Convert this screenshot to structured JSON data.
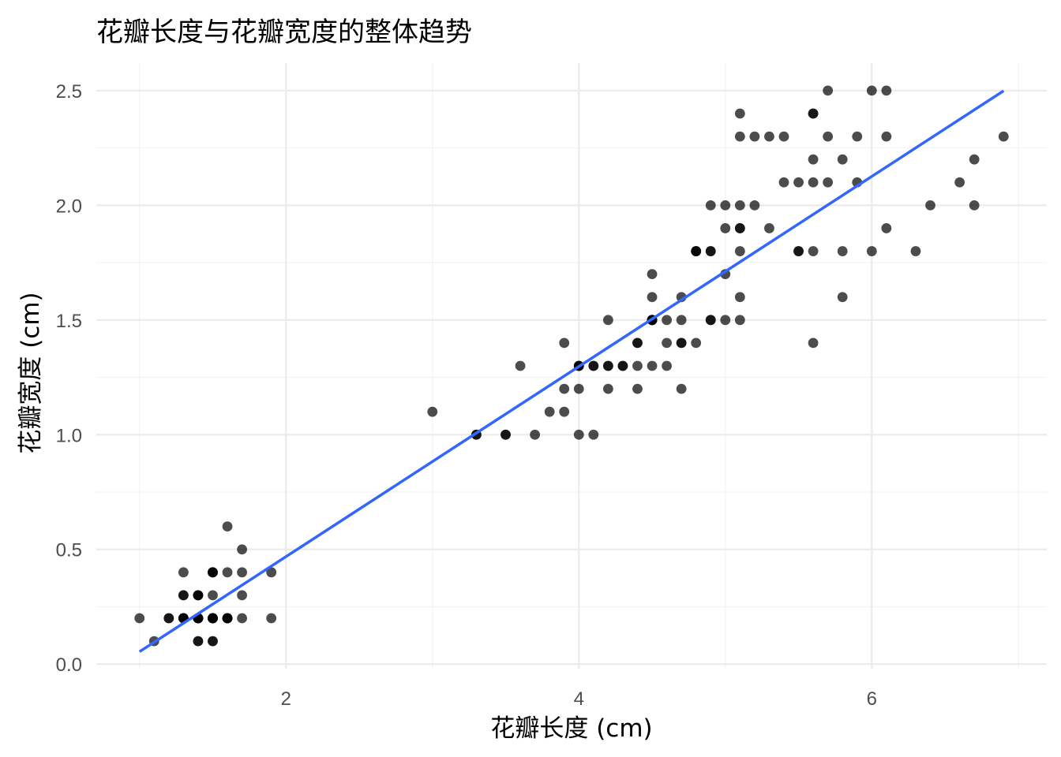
{
  "chart_data": {
    "type": "scatter",
    "title": "花瓣长度与花瓣宽度的整体趋势",
    "xlabel": "花瓣长度 (cm)",
    "ylabel": "花瓣宽度 (cm)",
    "xlim": [
      0.705,
      7.195
    ],
    "ylim": [
      -0.02,
      2.62
    ],
    "x_ticks": [
      2,
      4,
      6
    ],
    "y_ticks": [
      0.0,
      0.5,
      1.0,
      1.5,
      2.0,
      2.5
    ],
    "x_tick_labels": [
      "2",
      "4",
      "6"
    ],
    "y_tick_labels": [
      "0.0",
      "0.5",
      "1.0",
      "1.5",
      "2.0",
      "2.5"
    ],
    "grid": true,
    "point_color": "#000000",
    "point_opacity": 0.7,
    "trend_color": "#3366FF",
    "trend_line": {
      "x": [
        1.0,
        6.9
      ],
      "y": [
        0.054,
        2.499
      ]
    },
    "points": [
      [
        1.4,
        0.2
      ],
      [
        1.4,
        0.2
      ],
      [
        1.3,
        0.2
      ],
      [
        1.5,
        0.2
      ],
      [
        1.4,
        0.2
      ],
      [
        1.7,
        0.4
      ],
      [
        1.4,
        0.3
      ],
      [
        1.5,
        0.2
      ],
      [
        1.4,
        0.2
      ],
      [
        1.5,
        0.1
      ],
      [
        1.5,
        0.2
      ],
      [
        1.6,
        0.2
      ],
      [
        1.4,
        0.1
      ],
      [
        1.1,
        0.1
      ],
      [
        1.2,
        0.2
      ],
      [
        1.5,
        0.4
      ],
      [
        1.3,
        0.4
      ],
      [
        1.4,
        0.3
      ],
      [
        1.7,
        0.3
      ],
      [
        1.5,
        0.3
      ],
      [
        1.7,
        0.2
      ],
      [
        1.5,
        0.4
      ],
      [
        1.0,
        0.2
      ],
      [
        1.7,
        0.5
      ],
      [
        1.9,
        0.2
      ],
      [
        1.6,
        0.2
      ],
      [
        1.6,
        0.4
      ],
      [
        1.5,
        0.2
      ],
      [
        1.4,
        0.2
      ],
      [
        1.6,
        0.2
      ],
      [
        1.6,
        0.2
      ],
      [
        1.5,
        0.4
      ],
      [
        1.5,
        0.1
      ],
      [
        1.4,
        0.2
      ],
      [
        1.5,
        0.2
      ],
      [
        1.2,
        0.2
      ],
      [
        1.3,
        0.2
      ],
      [
        1.4,
        0.1
      ],
      [
        1.3,
        0.2
      ],
      [
        1.5,
        0.2
      ],
      [
        1.3,
        0.3
      ],
      [
        1.3,
        0.3
      ],
      [
        1.3,
        0.2
      ],
      [
        1.6,
        0.6
      ],
      [
        1.9,
        0.4
      ],
      [
        1.4,
        0.3
      ],
      [
        1.6,
        0.2
      ],
      [
        1.4,
        0.2
      ],
      [
        1.5,
        0.2
      ],
      [
        1.4,
        0.2
      ],
      [
        4.7,
        1.4
      ],
      [
        4.5,
        1.5
      ],
      [
        4.9,
        1.5
      ],
      [
        4.0,
        1.3
      ],
      [
        4.6,
        1.5
      ],
      [
        4.5,
        1.3
      ],
      [
        4.7,
        1.6
      ],
      [
        3.3,
        1.0
      ],
      [
        4.6,
        1.3
      ],
      [
        3.9,
        1.4
      ],
      [
        3.5,
        1.0
      ],
      [
        4.2,
        1.5
      ],
      [
        4.0,
        1.0
      ],
      [
        4.7,
        1.4
      ],
      [
        3.6,
        1.3
      ],
      [
        4.4,
        1.4
      ],
      [
        4.5,
        1.5
      ],
      [
        4.1,
        1.0
      ],
      [
        4.5,
        1.5
      ],
      [
        3.9,
        1.1
      ],
      [
        4.8,
        1.8
      ],
      [
        4.0,
        1.3
      ],
      [
        4.9,
        1.5
      ],
      [
        4.7,
        1.2
      ],
      [
        4.3,
        1.3
      ],
      [
        4.4,
        1.4
      ],
      [
        4.8,
        1.4
      ],
      [
        5.0,
        1.7
      ],
      [
        4.5,
        1.5
      ],
      [
        3.5,
        1.0
      ],
      [
        3.8,
        1.1
      ],
      [
        3.7,
        1.0
      ],
      [
        3.9,
        1.2
      ],
      [
        5.1,
        1.6
      ],
      [
        4.5,
        1.5
      ],
      [
        4.5,
        1.6
      ],
      [
        4.7,
        1.5
      ],
      [
        4.4,
        1.3
      ],
      [
        4.1,
        1.3
      ],
      [
        4.0,
        1.3
      ],
      [
        4.4,
        1.2
      ],
      [
        4.6,
        1.4
      ],
      [
        4.0,
        1.2
      ],
      [
        3.3,
        1.0
      ],
      [
        4.2,
        1.3
      ],
      [
        4.2,
        1.2
      ],
      [
        4.2,
        1.3
      ],
      [
        4.3,
        1.3
      ],
      [
        3.0,
        1.1
      ],
      [
        4.1,
        1.3
      ],
      [
        6.0,
        2.5
      ],
      [
        5.1,
        1.9
      ],
      [
        5.9,
        2.1
      ],
      [
        5.6,
        1.8
      ],
      [
        5.8,
        2.2
      ],
      [
        6.6,
        2.1
      ],
      [
        4.5,
        1.7
      ],
      [
        6.3,
        1.8
      ],
      [
        5.8,
        1.8
      ],
      [
        6.1,
        2.5
      ],
      [
        5.1,
        2.0
      ],
      [
        5.3,
        1.9
      ],
      [
        5.5,
        2.1
      ],
      [
        5.0,
        2.0
      ],
      [
        5.1,
        2.4
      ],
      [
        5.3,
        2.3
      ],
      [
        5.5,
        1.8
      ],
      [
        6.7,
        2.2
      ],
      [
        6.9,
        2.3
      ],
      [
        5.0,
        1.5
      ],
      [
        5.7,
        2.3
      ],
      [
        4.9,
        2.0
      ],
      [
        6.7,
        2.0
      ],
      [
        4.9,
        1.8
      ],
      [
        5.7,
        2.1
      ],
      [
        6.0,
        1.8
      ],
      [
        4.8,
        1.8
      ],
      [
        4.9,
        1.8
      ],
      [
        5.6,
        2.1
      ],
      [
        5.8,
        1.6
      ],
      [
        6.1,
        1.9
      ],
      [
        6.4,
        2.0
      ],
      [
        5.6,
        2.2
      ],
      [
        5.1,
        1.5
      ],
      [
        5.6,
        1.4
      ],
      [
        6.1,
        2.3
      ],
      [
        5.6,
        2.4
      ],
      [
        5.5,
        1.8
      ],
      [
        4.8,
        1.8
      ],
      [
        5.4,
        2.1
      ],
      [
        5.6,
        2.4
      ],
      [
        5.1,
        2.3
      ],
      [
        5.1,
        1.9
      ],
      [
        5.9,
        2.3
      ],
      [
        5.7,
        2.5
      ],
      [
        5.2,
        2.3
      ],
      [
        5.0,
        1.9
      ],
      [
        5.2,
        2.0
      ],
      [
        5.4,
        2.3
      ],
      [
        5.1,
        1.8
      ]
    ]
  }
}
